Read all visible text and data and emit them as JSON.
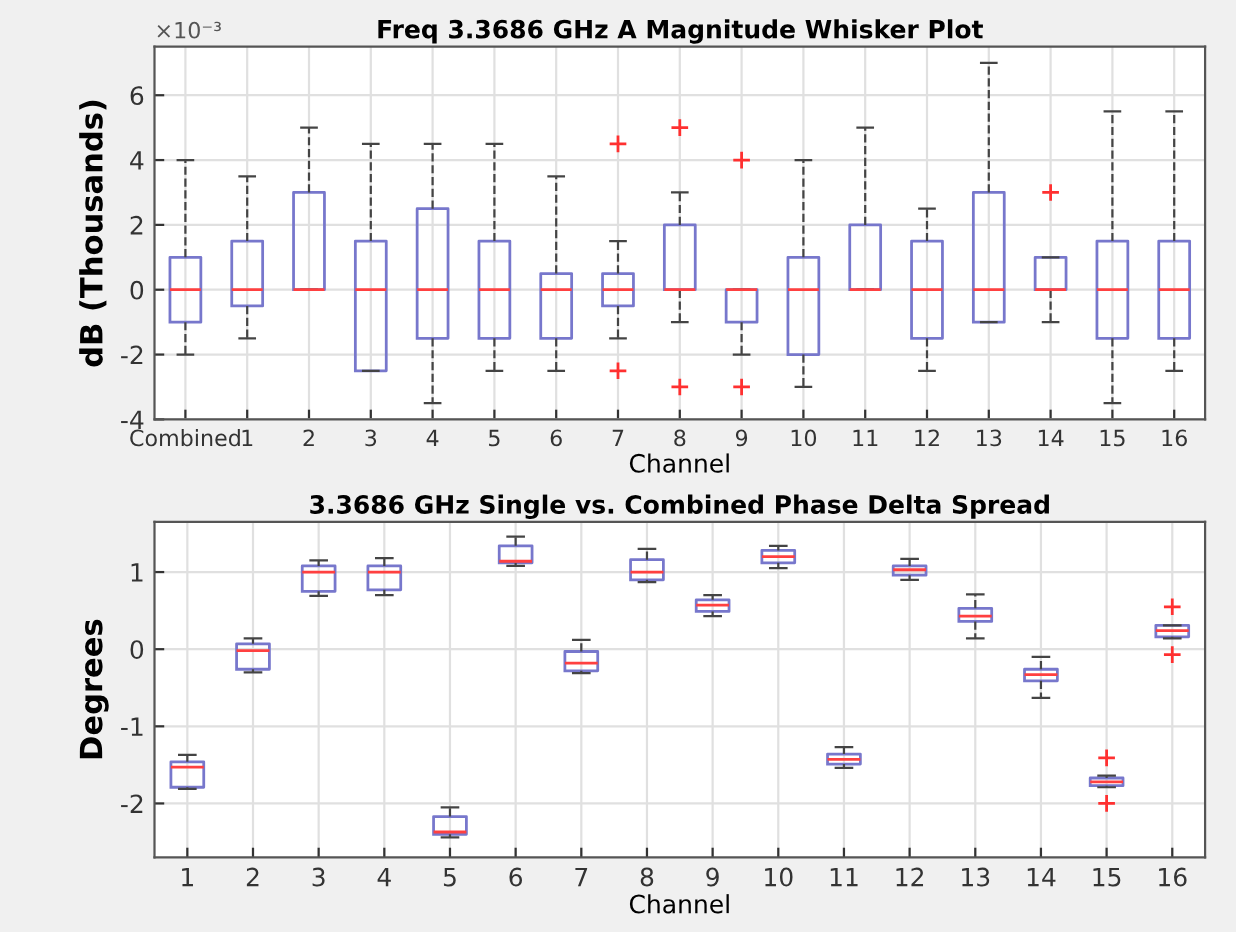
{
  "chart_data": [
    {
      "type": "box",
      "title": "Freq 3.3686 GHz A Magnitude Whisker Plot",
      "xlabel": "Channel",
      "ylabel": "dB (Thousands)",
      "annotations": [
        "×10⁻³"
      ],
      "categories": [
        "Combined",
        "1",
        "2",
        "3",
        "4",
        "5",
        "6",
        "7",
        "8",
        "9",
        "10",
        "11",
        "12",
        "13",
        "14",
        "15",
        "16"
      ],
      "ylim": [
        -4,
        7.5
      ],
      "yticks": [
        -4,
        -2,
        0,
        2,
        4,
        6
      ],
      "grid": true,
      "marker": "cross",
      "series": [
        {
          "color": "#7777cc",
          "boxes": [
            {
              "low": -2,
              "q1": -1,
              "median": 0,
              "q3": 1,
              "high": 4
            },
            {
              "low": -1.5,
              "q1": -0.5,
              "median": 0,
              "q3": 1.5,
              "high": 3.5
            },
            {
              "low": 0,
              "q1": 0,
              "median": 0,
              "q3": 3,
              "high": 5
            },
            {
              "low": -2.5,
              "q1": -2.5,
              "median": 0,
              "q3": 1.5,
              "high": 4.5
            },
            {
              "low": -3.5,
              "q1": -1.5,
              "median": 0,
              "q3": 2.5,
              "high": 4.5
            },
            {
              "low": -2.5,
              "q1": -1.5,
              "median": 0,
              "q3": 1.5,
              "high": 4.5
            },
            {
              "low": -2.5,
              "q1": -1.5,
              "median": 0,
              "q3": 0.5,
              "high": 3.5
            },
            {
              "low": -1.5,
              "q1": -0.5,
              "median": 0,
              "q3": 0.5,
              "high": 1.5,
              "outliers": [
                4.5,
                -2.5
              ]
            },
            {
              "low": -1,
              "q1": 0,
              "median": 0,
              "q3": 2,
              "high": 3,
              "outliers": [
                5,
                -3
              ]
            },
            {
              "low": -2,
              "q1": -1,
              "median": 0,
              "q3": 0,
              "high": 0,
              "outliers": [
                4,
                -3
              ]
            },
            {
              "low": -3,
              "q1": -2,
              "median": 0,
              "q3": 1,
              "high": 4
            },
            {
              "low": 0,
              "q1": 0,
              "median": 0,
              "q3": 2,
              "high": 5
            },
            {
              "low": -2.5,
              "q1": -1.5,
              "median": 0,
              "q3": 1.5,
              "high": 2.5
            },
            {
              "low": -1,
              "q1": -1,
              "median": 0,
              "q3": 3,
              "high": 7
            },
            {
              "low": -1,
              "q1": 0,
              "median": 0,
              "q3": 1,
              "high": 1,
              "outliers": [
                3
              ]
            },
            {
              "low": -3.5,
              "q1": -1.5,
              "median": 0,
              "q3": 1.5,
              "high": 5.5
            },
            {
              "low": -2.5,
              "q1": -1.5,
              "median": 0,
              "q3": 1.5,
              "high": 5.5
            }
          ]
        }
      ]
    },
    {
      "type": "box",
      "title": "3.3686 GHz Single vs. Combined Phase Delta Spread",
      "xlabel": "Channel",
      "ylabel": "Degrees",
      "categories": [
        "1",
        "2",
        "3",
        "4",
        "5",
        "6",
        "7",
        "8",
        "9",
        "10",
        "11",
        "12",
        "13",
        "14",
        "15",
        "16"
      ],
      "ylim": [
        -2.7,
        1.65
      ],
      "yticks": [
        -2,
        -1,
        0,
        1
      ],
      "grid": true,
      "marker": "cross",
      "series": [
        {
          "color": "#7777cc",
          "boxes": [
            {
              "low": -1.81,
              "q1": -1.79,
              "median": -1.53,
              "q3": -1.46,
              "high": -1.37
            },
            {
              "low": -0.3,
              "q1": -0.26,
              "median": -0.02,
              "q3": 0.07,
              "high": 0.14
            },
            {
              "low": 0.69,
              "q1": 0.75,
              "median": 1.0,
              "q3": 1.08,
              "high": 1.15
            },
            {
              "low": 0.7,
              "q1": 0.77,
              "median": 1.0,
              "q3": 1.08,
              "high": 1.18
            },
            {
              "low": -2.44,
              "q1": -2.4,
              "median": -2.37,
              "q3": -2.17,
              "high": -2.05
            },
            {
              "low": 1.08,
              "q1": 1.12,
              "median": 1.14,
              "q3": 1.34,
              "high": 1.46
            },
            {
              "low": -0.31,
              "q1": -0.28,
              "median": -0.18,
              "q3": -0.03,
              "high": 0.12
            },
            {
              "low": 0.87,
              "q1": 0.9,
              "median": 1.0,
              "q3": 1.16,
              "high": 1.3
            },
            {
              "low": 0.43,
              "q1": 0.49,
              "median": 0.57,
              "q3": 0.64,
              "high": 0.7
            },
            {
              "low": 1.05,
              "q1": 1.12,
              "median": 1.2,
              "q3": 1.28,
              "high": 1.34
            },
            {
              "low": -1.54,
              "q1": -1.49,
              "median": -1.43,
              "q3": -1.36,
              "high": -1.27
            },
            {
              "low": 0.9,
              "q1": 0.96,
              "median": 1.03,
              "q3": 1.08,
              "high": 1.17
            },
            {
              "low": 0.14,
              "q1": 0.36,
              "median": 0.43,
              "q3": 0.53,
              "high": 0.71
            },
            {
              "low": -0.63,
              "q1": -0.41,
              "median": -0.33,
              "q3": -0.26,
              "high": -0.1
            },
            {
              "low": -1.79,
              "q1": -1.77,
              "median": -1.72,
              "q3": -1.67,
              "high": -1.64,
              "outliers": [
                -1.41,
                -2.0
              ]
            },
            {
              "low": 0.14,
              "q1": 0.16,
              "median": 0.24,
              "q3": 0.31,
              "high": 0.31,
              "outliers": [
                0.55,
                -0.07
              ]
            }
          ]
        }
      ]
    }
  ]
}
